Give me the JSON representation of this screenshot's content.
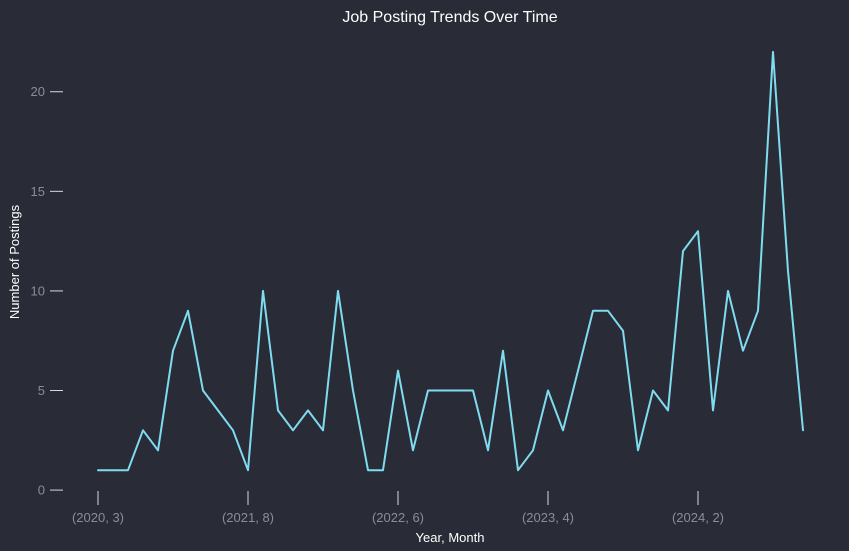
{
  "chart_data": {
    "type": "line",
    "title": "Job Posting Trends Over Time",
    "xlabel": "Year, Month",
    "ylabel": "Number of Postings",
    "x_tick_labels": [
      "(2020, 3)",
      "(2021, 8)",
      "(2022, 6)",
      "(2023, 4)",
      "(2024, 2)"
    ],
    "x_tick_index": [
      0,
      10,
      20,
      30,
      40
    ],
    "y_ticks": [
      0,
      5,
      10,
      15,
      20
    ],
    "ylim": [
      -1.1,
      23.1
    ],
    "grid": false,
    "series": [
      {
        "color": "#7fdcf0",
        "values": [
          1,
          1,
          1,
          3,
          2,
          7,
          9,
          5,
          4,
          3,
          1,
          10,
          4,
          3,
          4,
          3,
          10,
          5,
          1,
          1,
          6,
          2,
          5,
          5,
          5,
          5,
          2,
          7,
          1,
          2,
          5,
          3,
          6,
          9,
          9,
          8,
          2,
          5,
          4,
          12,
          13,
          4,
          10,
          7,
          9,
          22,
          11,
          3
        ]
      }
    ]
  }
}
